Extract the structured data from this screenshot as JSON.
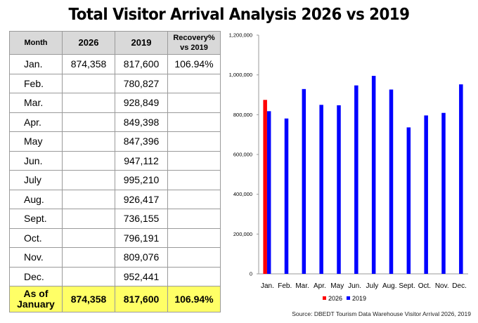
{
  "title": "Total Visitor Arrival Analysis 2026 vs 2019",
  "table": {
    "headers": {
      "month": "Month",
      "y2026": "2026",
      "y2019": "2019",
      "recovery": "Recovery% vs 2019"
    },
    "rows": [
      {
        "month": "Jan.",
        "y2026": "874,358",
        "y2019": "817,600",
        "recovery": "106.94%"
      },
      {
        "month": "Feb.",
        "y2026": "",
        "y2019": "780,827",
        "recovery": ""
      },
      {
        "month": "Mar.",
        "y2026": "",
        "y2019": "928,849",
        "recovery": ""
      },
      {
        "month": "Apr.",
        "y2026": "",
        "y2019": "849,398",
        "recovery": ""
      },
      {
        "month": "May",
        "y2026": "",
        "y2019": "847,396",
        "recovery": ""
      },
      {
        "month": "Jun.",
        "y2026": "",
        "y2019": "947,112",
        "recovery": ""
      },
      {
        "month": "July",
        "y2026": "",
        "y2019": "995,210",
        "recovery": ""
      },
      {
        "month": "Aug.",
        "y2026": "",
        "y2019": "926,417",
        "recovery": ""
      },
      {
        "month": "Sept.",
        "y2026": "",
        "y2019": "736,155",
        "recovery": ""
      },
      {
        "month": "Oct.",
        "y2026": "",
        "y2019": "796,191",
        "recovery": ""
      },
      {
        "month": "Nov.",
        "y2026": "",
        "y2019": "809,076",
        "recovery": ""
      },
      {
        "month": "Dec.",
        "y2026": "",
        "y2019": "952,441",
        "recovery": ""
      }
    ],
    "total": {
      "label": "As of January",
      "y2026": "874,358",
      "y2019": "817,600",
      "recovery": "106.94%"
    }
  },
  "chart_data": {
    "type": "bar",
    "categories": [
      "Jan.",
      "Feb.",
      "Mar.",
      "Apr.",
      "May",
      "Jun.",
      "July",
      "Aug.",
      "Sept.",
      "Oct.",
      "Nov.",
      "Dec."
    ],
    "series": [
      {
        "name": "2026",
        "color": "#ff0000",
        "values": [
          874358,
          null,
          null,
          null,
          null,
          null,
          null,
          null,
          null,
          null,
          null,
          null
        ]
      },
      {
        "name": "2019",
        "color": "#0000ff",
        "values": [
          817600,
          780827,
          928849,
          849398,
          847396,
          947112,
          995210,
          926417,
          736155,
          796191,
          809076,
          952441
        ]
      }
    ],
    "ylim": [
      0,
      1200000
    ],
    "yticks": [
      0,
      200000,
      400000,
      600000,
      800000,
      1000000,
      1200000
    ],
    "ytick_labels": [
      "0",
      "200,000",
      "400,000",
      "600,000",
      "800,000",
      "1,000,000",
      "1,200,000"
    ],
    "grid": false,
    "legend_position": "bottom"
  },
  "source": "Source: DBEDT Tourism Data Warehouse Visitor Arrival 2026, 2019"
}
